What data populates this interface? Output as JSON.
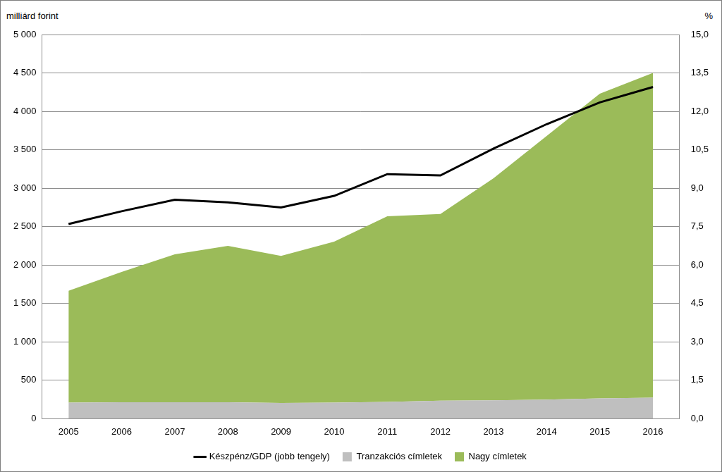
{
  "chart_data": {
    "type": "area",
    "y_label": "milliárd forint",
    "y2_label": "%",
    "categories": [
      "2005",
      "2006",
      "2007",
      "2008",
      "2009",
      "2010",
      "2011",
      "2012",
      "2013",
      "2014",
      "2015",
      "2016"
    ],
    "stacked": true,
    "grid": true,
    "legend": "bottom",
    "series": [
      {
        "name": "Tranzakciós címletek",
        "type": "area",
        "color": "#bfbfbf",
        "values": [
          210,
          215,
          215,
          215,
          205,
          210,
          220,
          235,
          240,
          250,
          265,
          275
        ]
      },
      {
        "name": "Nagy címletek",
        "type": "area",
        "color": "#9bbb59",
        "values": [
          1455,
          1695,
          1925,
          2035,
          1915,
          2095,
          2415,
          2430,
          2890,
          3430,
          3965,
          4225
        ]
      },
      {
        "name": "Készpénz/GDP (jobb tengely)",
        "type": "line",
        "color": "#000000",
        "axis": "y2",
        "values": [
          7.6,
          8.1,
          8.55,
          8.45,
          8.25,
          8.7,
          9.55,
          9.5,
          10.55,
          11.5,
          12.35,
          12.95
        ]
      }
    ],
    "ylim": [
      0,
      5000
    ],
    "yticks": [
      0,
      500,
      {
        "value": 1000,
        "label": "1 000"
      },
      {
        "value": 1500,
        "label": "1 500"
      },
      {
        "value": 2000,
        "label": "2 000"
      },
      {
        "value": 2500,
        "label": "2 500"
      },
      {
        "value": 3000,
        "label": "3 000"
      },
      {
        "value": 3500,
        "label": "3 500"
      },
      {
        "value": 4000,
        "label": "4 000"
      },
      {
        "value": 4500,
        "label": "4 500"
      },
      {
        "value": 5000,
        "label": "5 000"
      }
    ],
    "y2lim": [
      0,
      15
    ],
    "y2ticks": [
      {
        "value": 0,
        "label": "0,0"
      },
      {
        "value": 1.5,
        "label": "1,5"
      },
      {
        "value": 3,
        "label": "3,0"
      },
      {
        "value": 4.5,
        "label": "4,5"
      },
      {
        "value": 6,
        "label": "6,0"
      },
      {
        "value": 7.5,
        "label": "7,5"
      },
      {
        "value": 9,
        "label": "9,0"
      },
      {
        "value": 10.5,
        "label": "10,5"
      },
      {
        "value": 12,
        "label": "12,0"
      },
      {
        "value": 13.5,
        "label": "13,5"
      },
      {
        "value": 15,
        "label": "15,0"
      }
    ]
  }
}
